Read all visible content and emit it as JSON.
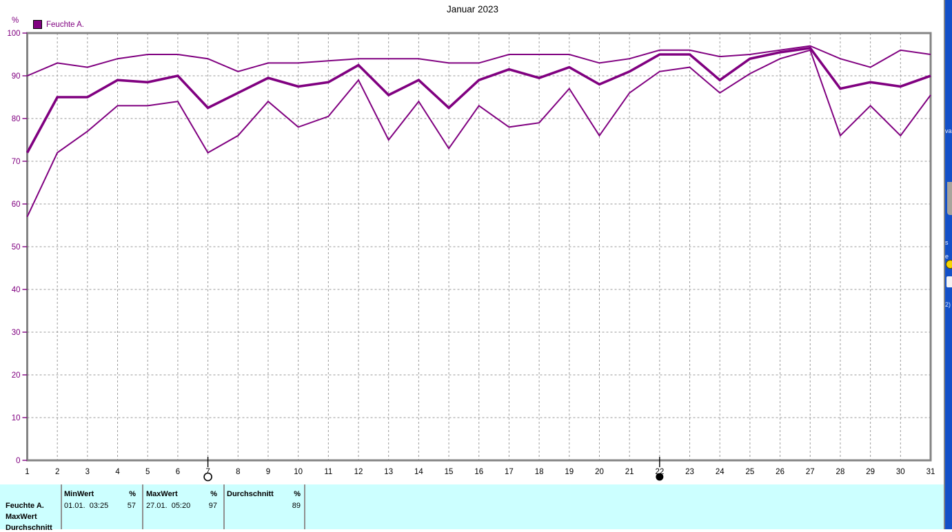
{
  "window": {
    "title": "Januar 2023"
  },
  "legend": {
    "label": "Feuchte A.",
    "color": "#800080"
  },
  "colors": {
    "line": "#800080",
    "grid": "#9a9a9a",
    "frame": "#848484",
    "axis_label": "#800080",
    "x_label": "#000000",
    "title": "#000000",
    "table_bg": "#ccffff",
    "table_divider": "#8f8f8f",
    "bg_window": "#1350c8"
  },
  "chart_data": {
    "type": "line",
    "title": "Januar 2023",
    "xlabel": "",
    "ylabel": "%",
    "ylim": [
      0,
      100
    ],
    "yticks": [
      0,
      10,
      20,
      30,
      40,
      50,
      60,
      70,
      80,
      90,
      100
    ],
    "grid": true,
    "legend_position": "top-left",
    "x": [
      1,
      2,
      3,
      4,
      5,
      6,
      7,
      8,
      9,
      10,
      11,
      12,
      13,
      14,
      15,
      16,
      17,
      18,
      19,
      20,
      21,
      22,
      23,
      24,
      25,
      26,
      27,
      28,
      29,
      30,
      31
    ],
    "series": [
      {
        "name": "MaxWert",
        "line": "thin",
        "values": [
          90,
          93,
          92,
          94,
          95,
          95,
          94,
          91,
          93,
          93,
          93.5,
          94,
          94,
          94,
          93,
          93,
          95,
          95,
          95,
          93,
          94,
          96,
          96,
          94.5,
          95,
          96,
          97,
          94,
          92,
          96,
          95
        ]
      },
      {
        "name": "MinWert",
        "line": "thin",
        "values": [
          57,
          72,
          77,
          83,
          83,
          84,
          72,
          76,
          84,
          78,
          80.5,
          89,
          75,
          84,
          73,
          83,
          78,
          79,
          87,
          76,
          86,
          91,
          92,
          86,
          90.5,
          94,
          96,
          76,
          83,
          76,
          85.5
        ]
      },
      {
        "name": "Durchschnitt",
        "line": "thick",
        "values": [
          72,
          85,
          85,
          89,
          88.5,
          90,
          82.5,
          86,
          89.5,
          87.5,
          88.5,
          92.5,
          85.5,
          89,
          82.5,
          89,
          91.5,
          89.5,
          92,
          88,
          91,
          95,
          95,
          89,
          94,
          95.5,
          96.5,
          87,
          88.5,
          87.5,
          90
        ]
      }
    ],
    "day_markers": [
      {
        "day": 7,
        "symbol": "circle-open"
      },
      {
        "day": 22,
        "symbol": "circle-filled"
      }
    ]
  },
  "summary_table": {
    "series_column": [
      "Feuchte A.",
      "MaxWert",
      "Durchschnitt"
    ],
    "min_col": {
      "header": "MinWert",
      "unit": "%",
      "datetime": "01.01.  03:25",
      "value": "57"
    },
    "max_col": {
      "header": "MaxWert",
      "unit": "%",
      "datetime": "27.01.  05:20",
      "value": "97"
    },
    "avg_col": {
      "header": "Durchschnitt",
      "unit": "%",
      "datetime": "",
      "value": "89"
    }
  },
  "background_window": {
    "fragments": [
      "va",
      "s",
      "e",
      "2)"
    ]
  }
}
